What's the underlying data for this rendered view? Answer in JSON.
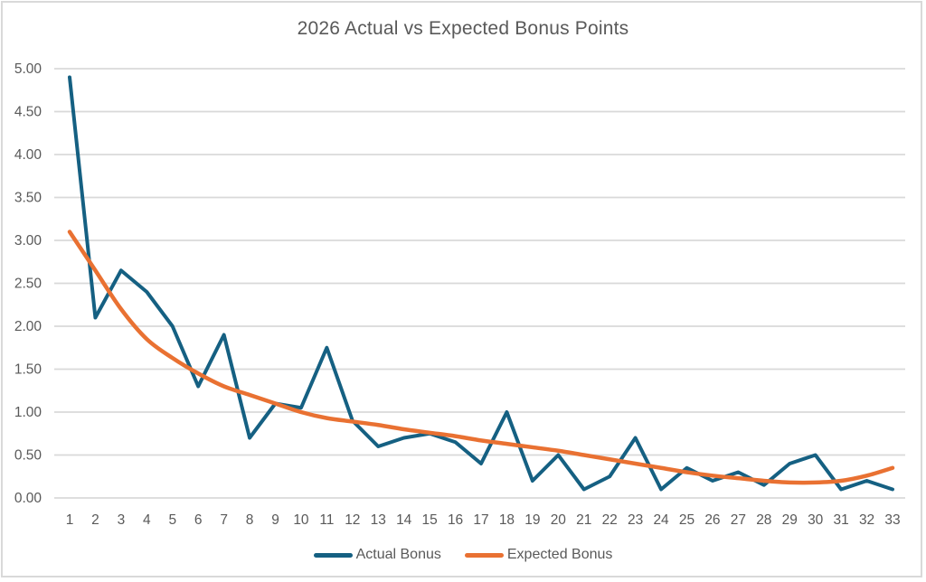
{
  "page": {
    "background_color": "#FFFFFF",
    "frame_border_color": "#D9D9D9"
  },
  "chart_data": {
    "type": "line",
    "title": "2026 Actual vs Expected Bonus Points",
    "title_color": "#595959",
    "axis_text_color": "#595959",
    "gridline_color": "#D9D9D9",
    "grid": true,
    "legend_position": "bottom",
    "xlabel": "",
    "ylabel": "",
    "ylim": [
      0,
      5
    ],
    "ytick_step": 0.5,
    "ytick_decimals": 2,
    "ytick_labels": [
      "0.00",
      "0.50",
      "1.00",
      "1.50",
      "2.00",
      "2.50",
      "3.00",
      "3.50",
      "4.00",
      "4.50",
      "5.00"
    ],
    "categories": [
      1,
      2,
      3,
      4,
      5,
      6,
      7,
      8,
      9,
      10,
      11,
      12,
      13,
      14,
      15,
      16,
      17,
      18,
      19,
      20,
      21,
      22,
      23,
      24,
      25,
      26,
      27,
      28,
      29,
      30,
      31,
      32,
      33
    ],
    "series": [
      {
        "name": "Actual Bonus",
        "color": "#156082",
        "stroke_width": 4,
        "smooth": false,
        "values": [
          4.9,
          2.1,
          2.65,
          2.4,
          2.0,
          1.3,
          1.9,
          0.7,
          1.1,
          1.05,
          1.75,
          0.9,
          0.6,
          0.7,
          0.75,
          0.65,
          0.4,
          1.0,
          0.2,
          0.5,
          0.1,
          0.25,
          0.7,
          0.1,
          0.35,
          0.2,
          0.3,
          0.15,
          0.4,
          0.5,
          0.1,
          0.2,
          0.1
        ]
      },
      {
        "name": "Expected Bonus",
        "color": "#E97132",
        "stroke_width": 4.5,
        "smooth": true,
        "values": [
          3.1,
          2.65,
          2.2,
          1.85,
          1.63,
          1.45,
          1.3,
          1.2,
          1.1,
          1.0,
          0.93,
          0.89,
          0.85,
          0.8,
          0.76,
          0.72,
          0.67,
          0.63,
          0.59,
          0.55,
          0.5,
          0.45,
          0.4,
          0.35,
          0.3,
          0.26,
          0.23,
          0.2,
          0.18,
          0.18,
          0.2,
          0.26,
          0.35
        ]
      }
    ]
  }
}
